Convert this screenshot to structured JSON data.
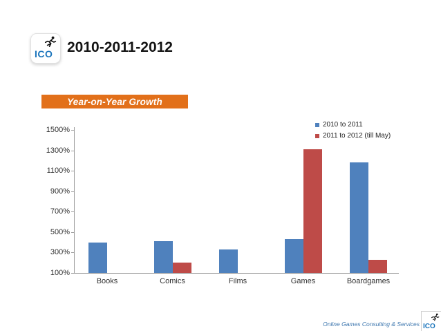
{
  "slide_title": "2010-2011-2012",
  "banner_label": "Year-on-Year Growth",
  "brand": {
    "logo_text": "ICO"
  },
  "footer": {
    "credit": "Online Games Consulting & Services",
    "logo_text": "ICO"
  },
  "colors": {
    "banner_orange": "#E2701A",
    "series_blue": "#4F81BD",
    "series_red": "#BE4B48",
    "ico_blue": "#1B75BC",
    "footer_text_blue": "#3C76AE",
    "axis_gray": "#9E9E9E"
  },
  "chart_data": {
    "type": "bar",
    "title": "Year-on-Year Growth",
    "categories": [
      "Books",
      "Comics",
      "Films",
      "Games",
      "Boardgames"
    ],
    "series": [
      {
        "name": "2010 to 2011",
        "color": "#4F81BD",
        "values": [
          400,
          410,
          330,
          430,
          1180
        ]
      },
      {
        "name": "2011 to 2012 (till May)",
        "color": "#BE4B48",
        "values": [
          0,
          200,
          0,
          1310,
          230
        ]
      }
    ],
    "y_ticks": [
      "1500%",
      "1300%",
      "1100%",
      "900%",
      "700%",
      "500%",
      "300%",
      "100%"
    ],
    "ylim": [
      100,
      1500
    ],
    "unit": "%",
    "grid": false,
    "legend_position": "top-right"
  }
}
